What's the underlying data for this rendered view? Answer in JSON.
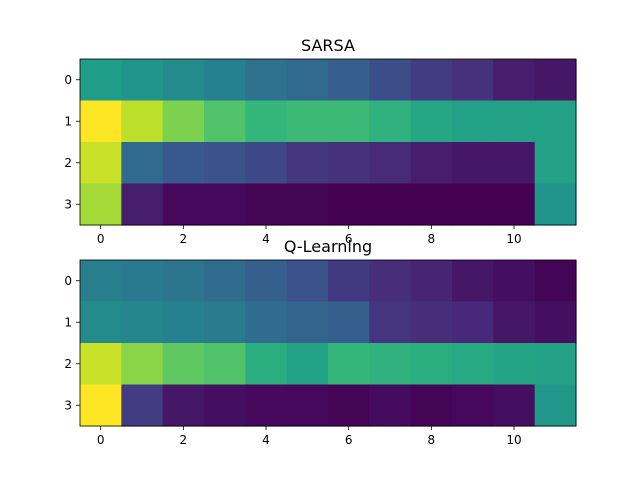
{
  "chart_data": [
    {
      "type": "heatmap",
      "title": "SARSA",
      "rows": [
        0,
        1,
        2,
        3
      ],
      "cols": [
        0,
        1,
        2,
        3,
        4,
        5,
        6,
        7,
        8,
        9,
        10,
        11
      ],
      "xticks": [
        "0",
        "2",
        "4",
        "6",
        "8",
        "10"
      ],
      "yticks": [
        "0",
        "1",
        "2",
        "3"
      ],
      "colormap": "viridis",
      "values": [
        [
          0.55,
          0.52,
          0.48,
          0.44,
          0.37,
          0.34,
          0.3,
          0.24,
          0.18,
          0.14,
          0.08,
          0.06
        ],
        [
          1.0,
          0.9,
          0.8,
          0.72,
          0.66,
          0.68,
          0.68,
          0.64,
          0.59,
          0.57,
          0.57,
          0.57
        ],
        [
          0.92,
          0.34,
          0.28,
          0.26,
          0.22,
          0.16,
          0.14,
          0.12,
          0.08,
          0.06,
          0.06,
          0.57
        ],
        [
          0.86,
          0.08,
          0.02,
          0.02,
          0.01,
          0.01,
          0.0,
          0.0,
          0.0,
          0.0,
          0.0,
          0.52
        ]
      ]
    },
    {
      "type": "heatmap",
      "title": "Q-Learning",
      "rows": [
        0,
        1,
        2,
        3
      ],
      "cols": [
        0,
        1,
        2,
        3,
        4,
        5,
        6,
        7,
        8,
        9,
        10,
        11
      ],
      "xticks": [
        "0",
        "2",
        "4",
        "6",
        "8",
        "10"
      ],
      "yticks": [
        "0",
        "1",
        "2",
        "3"
      ],
      "colormap": "viridis",
      "values": [
        [
          0.43,
          0.41,
          0.39,
          0.35,
          0.3,
          0.25,
          0.17,
          0.13,
          0.1,
          0.06,
          0.04,
          0.01
        ],
        [
          0.48,
          0.46,
          0.44,
          0.42,
          0.35,
          0.32,
          0.3,
          0.15,
          0.13,
          0.11,
          0.06,
          0.04
        ],
        [
          0.92,
          0.82,
          0.75,
          0.72,
          0.62,
          0.57,
          0.66,
          0.64,
          0.62,
          0.6,
          0.58,
          0.57
        ],
        [
          1.0,
          0.18,
          0.06,
          0.04,
          0.02,
          0.02,
          0.01,
          0.03,
          0.01,
          0.02,
          0.04,
          0.53
        ]
      ]
    }
  ]
}
